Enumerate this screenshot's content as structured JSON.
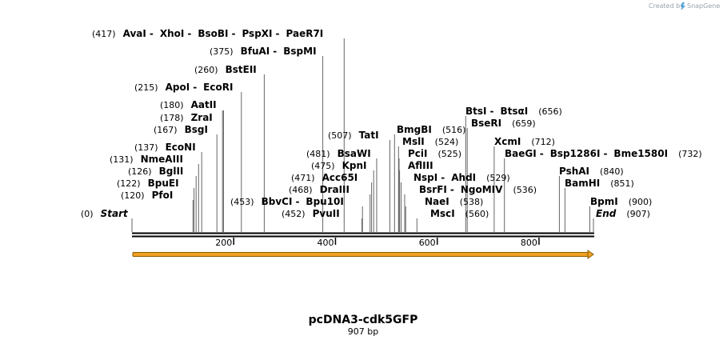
{
  "credit": "Created by",
  "brand": "SnapGene",
  "title": "pcDNA3-cdk5GFP",
  "subtitle": "907 bp",
  "sequence_length": 907,
  "axis_ticks": [
    {
      "value": 200,
      "label": "200"
    },
    {
      "value": 400,
      "label": "400"
    },
    {
      "value": 600,
      "label": "600"
    },
    {
      "value": 800,
      "label": "800"
    }
  ],
  "colors": {
    "feature": "#f0a020",
    "feature_outline": "#8a5a00",
    "line": "#000000"
  },
  "sites": [
    {
      "pos": 417,
      "pos_label": "(417)",
      "enzymes": [
        "AvaI",
        "XhoI",
        "BsoBI",
        "PspXI",
        "PaeR7I"
      ]
    },
    {
      "pos": 375,
      "pos_label": "(375)",
      "enzymes": [
        "BfuAI",
        "BspMI"
      ]
    },
    {
      "pos": 260,
      "pos_label": "(260)",
      "enzymes": [
        "BstEII"
      ]
    },
    {
      "pos": 215,
      "pos_label": "(215)",
      "enzymes": [
        "ApoI",
        "EcoRI"
      ]
    },
    {
      "pos": 180,
      "pos_label": "(180)",
      "enzymes": [
        "AatII"
      ]
    },
    {
      "pos": 178,
      "pos_label": "(178)",
      "enzymes": [
        "ZraI"
      ]
    },
    {
      "pos": 167,
      "pos_label": "(167)",
      "enzymes": [
        "BsgI"
      ]
    },
    {
      "pos": 137,
      "pos_label": "(137)",
      "enzymes": [
        "EcoNI"
      ]
    },
    {
      "pos": 131,
      "pos_label": "(131)",
      "enzymes": [
        "NmeAIII"
      ]
    },
    {
      "pos": 126,
      "pos_label": "(126)",
      "enzymes": [
        "BglII"
      ]
    },
    {
      "pos": 122,
      "pos_label": "(122)",
      "enzymes": [
        "BpuEI"
      ]
    },
    {
      "pos": 120,
      "pos_label": "(120)",
      "enzymes": [
        "PfoI"
      ]
    },
    {
      "pos": 0,
      "pos_label": "(0)",
      "enzymes": [
        "Start"
      ],
      "italic": true
    },
    {
      "pos": 453,
      "pos_label": "(453)",
      "enzymes": [
        "BbvCI",
        "Bpu10I"
      ]
    },
    {
      "pos": 452,
      "pos_label": "(452)",
      "enzymes": [
        "PvuII"
      ]
    },
    {
      "pos": 507,
      "pos_label": "(507)",
      "enzymes": [
        "TatI"
      ]
    },
    {
      "pos": 481,
      "pos_label": "(481)",
      "enzymes": [
        "BsaWI"
      ]
    },
    {
      "pos": 475,
      "pos_label": "(475)",
      "enzymes": [
        "KpnI"
      ]
    },
    {
      "pos": 471,
      "pos_label": "(471)",
      "enzymes": [
        "Acc65I"
      ]
    },
    {
      "pos": 468,
      "pos_label": "(468)",
      "enzymes": [
        "DraIII"
      ]
    },
    {
      "pos": 516,
      "pos_label": "(516)",
      "enzymes": [
        "BmgBI"
      ]
    },
    {
      "pos": 524,
      "pos_label": "(524)",
      "enzymes": [
        "MslI"
      ]
    },
    {
      "pos": 525,
      "pos_label": "(525)",
      "enzymes": [
        "PciI"
      ]
    },
    {
      "pos": 526,
      "pos_label": "",
      "enzymes": [
        "AflIII"
      ]
    },
    {
      "pos": 529,
      "pos_label": "(529)",
      "enzymes": [
        "NspI",
        "AhdI"
      ]
    },
    {
      "pos": 536,
      "pos_label": "(536)",
      "enzymes": [
        "BsrFI",
        "NgoMIV"
      ]
    },
    {
      "pos": 538,
      "pos_label": "(538)",
      "enzymes": [
        "NaeI"
      ]
    },
    {
      "pos": 560,
      "pos_label": "(560)",
      "enzymes": [
        "MscI"
      ]
    },
    {
      "pos": 656,
      "pos_label": "(656)",
      "enzymes": [
        "BtsI",
        "BtsαI"
      ]
    },
    {
      "pos": 659,
      "pos_label": "(659)",
      "enzymes": [
        "BseRI"
      ]
    },
    {
      "pos": 712,
      "pos_label": "(712)",
      "enzymes": [
        "XcmI"
      ]
    },
    {
      "pos": 732,
      "pos_label": "(732)",
      "enzymes": [
        "BaeGI",
        "Bsp1286I",
        "Bme1580I"
      ]
    },
    {
      "pos": 840,
      "pos_label": "(840)",
      "enzymes": [
        "PshAI"
      ]
    },
    {
      "pos": 851,
      "pos_label": "(851)",
      "enzymes": [
        "BamHI"
      ]
    },
    {
      "pos": 900,
      "pos_label": "(900)",
      "enzymes": [
        "BpmI"
      ]
    },
    {
      "pos": 907,
      "pos_label": "(907)",
      "enzymes": [
        "End"
      ],
      "italic": true
    }
  ]
}
